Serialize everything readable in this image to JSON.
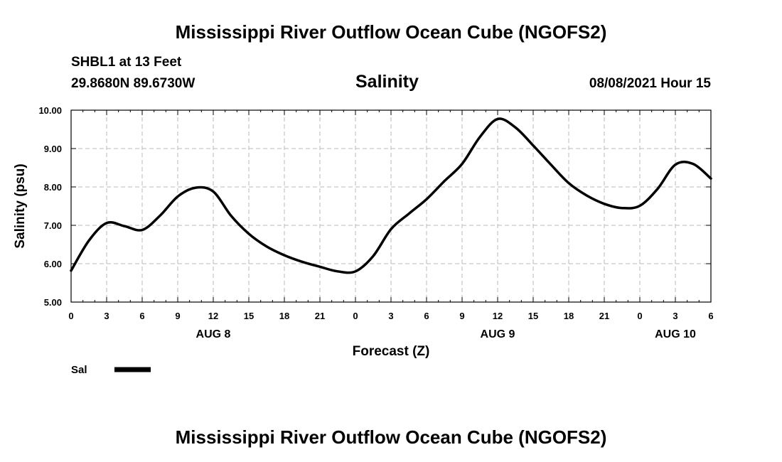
{
  "header": {
    "title": "Mississippi River Outflow Ocean Cube (NGOFS2)",
    "station": "SHBL1 at 13 Feet",
    "coords": "29.8680N  89.6730W",
    "variable": "Salinity",
    "timestamp": "08/08/2021 Hour 15"
  },
  "footer": {
    "title": "Mississippi River Outflow Ocean Cube (NGOFS2)"
  },
  "chart_data": {
    "type": "line",
    "title": "Salinity",
    "xlabel": "Forecast (Z)",
    "ylabel": "Salinity (psu)",
    "xlim": [
      0,
      54
    ],
    "ylim": [
      5,
      10
    ],
    "grid": true,
    "x_ticks": [
      0,
      3,
      6,
      9,
      12,
      15,
      18,
      21,
      24,
      27,
      30,
      33,
      36,
      39,
      42,
      45,
      48,
      51,
      54
    ],
    "x_tick_labels": [
      "0",
      "3",
      "6",
      "9",
      "12",
      "15",
      "18",
      "21",
      "0",
      "3",
      "6",
      "9",
      "12",
      "15",
      "18",
      "21",
      "0",
      "3",
      "6"
    ],
    "y_ticks": [
      5,
      6,
      7,
      8,
      9,
      10
    ],
    "y_tick_labels": [
      "5.00",
      "6.00",
      "7.00",
      "8.00",
      "9.00",
      "10.00"
    ],
    "day_labels": [
      {
        "x": 12,
        "label": "AUG 8"
      },
      {
        "x": 36,
        "label": "AUG 9"
      },
      {
        "x": 51,
        "label": "AUG 10"
      }
    ],
    "series": [
      {
        "name": "Sal",
        "color": "#000000",
        "x": [
          0,
          1.5,
          3,
          4.5,
          6,
          7.5,
          9,
          10.5,
          12,
          13.5,
          15,
          16.5,
          18,
          19.5,
          21,
          22.5,
          24,
          25.5,
          27,
          28.5,
          30,
          31.5,
          33,
          34.5,
          36,
          37.5,
          39,
          40.5,
          42,
          43.5,
          45,
          46.5,
          48,
          49.5,
          51,
          52.5,
          54
        ],
        "values": [
          5.82,
          6.6,
          7.06,
          6.98,
          6.88,
          7.25,
          7.75,
          7.98,
          7.88,
          7.25,
          6.78,
          6.45,
          6.22,
          6.05,
          5.92,
          5.8,
          5.8,
          6.2,
          6.9,
          7.3,
          7.68,
          8.15,
          8.6,
          9.3,
          9.77,
          9.55,
          9.08,
          8.58,
          8.1,
          7.78,
          7.56,
          7.45,
          7.51,
          7.95,
          8.58,
          8.6,
          8.22
        ]
      }
    ],
    "legend": [
      {
        "label": "Sal",
        "color": "#000000"
      }
    ],
    "legend_position": "bottom-left"
  }
}
